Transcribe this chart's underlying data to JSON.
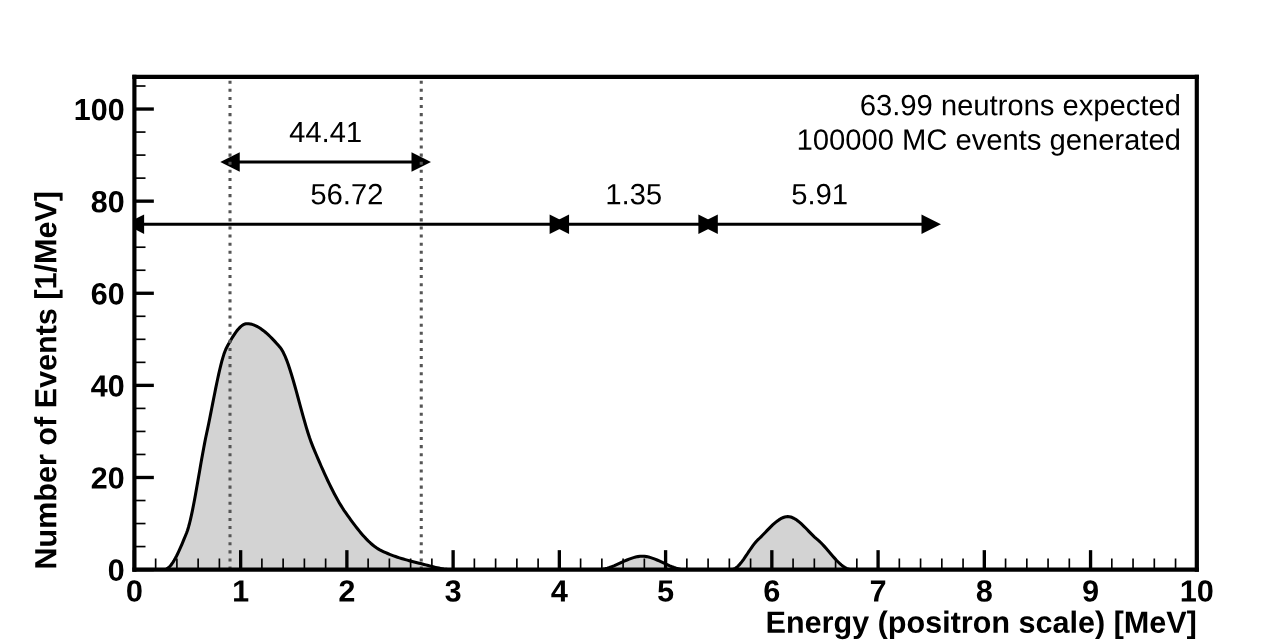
{
  "chart_data": {
    "type": "area",
    "xlabel": "Energy (positron scale) [MeV]",
    "ylabel": "Number of Events [1/MeV]",
    "series": [
      {
        "color": "#d3d3d3",
        "x": [
          0,
          0.28,
          0.49,
          0.68,
          0.87,
          1.06,
          1.37,
          1.68,
          1.99,
          2.31,
          2.68,
          2.99,
          4.37,
          4.78,
          5.18,
          5.62,
          5.87,
          6.15,
          6.43,
          6.75,
          10
        ],
        "values": [
          0,
          0,
          7.9,
          29.6,
          48.3,
          53.4,
          48.3,
          26.7,
          12.3,
          4.3,
          1.4,
          0,
          0,
          2.9,
          0,
          0,
          6.5,
          11.5,
          6.5,
          0,
          0
        ]
      },
      {
        "type": "line",
        "color": "#000000",
        "x": [
          0,
          4.0
        ],
        "values": [
          75,
          75
        ],
        "marker": "triangle"
      },
      {
        "type": "line",
        "color": "#000000",
        "x": [
          4.0,
          5.4
        ],
        "values": [
          75,
          75
        ],
        "marker": "triangle"
      },
      {
        "type": "line",
        "color": "#000000",
        "x": [
          5.4,
          7.5
        ],
        "values": [
          75,
          75
        ],
        "marker": "triangle"
      },
      {
        "type": "line",
        "color": "#000000",
        "x": [
          0.9,
          2.7
        ],
        "values": [
          88.5,
          88.5
        ],
        "marker": "triangle"
      }
    ],
    "xlim": [
      0,
      10
    ],
    "ylim": [
      0,
      107
    ],
    "xticks": [
      0,
      1,
      2,
      3,
      4,
      5,
      6,
      7,
      8,
      9,
      10
    ],
    "yticks": [
      0,
      20,
      40,
      60,
      80,
      100
    ],
    "grid": false,
    "ref_lines": [
      {
        "axis": "x",
        "value": 0.9,
        "line_style": "dotted"
      },
      {
        "axis": "x",
        "value": 2.7,
        "line_style": "dotted"
      }
    ],
    "annotations": [
      {
        "text": "56.72",
        "x": 2.0,
        "y": 75
      },
      {
        "text": "1.35",
        "x": 4.7,
        "y": 75
      },
      {
        "text": "5.91",
        "x": 6.45,
        "y": 75
      },
      {
        "text": "44.41",
        "x": 1.8,
        "y": 88.5
      },
      "63.99 neutrons expected",
      "100000 MC events generated"
    ]
  }
}
